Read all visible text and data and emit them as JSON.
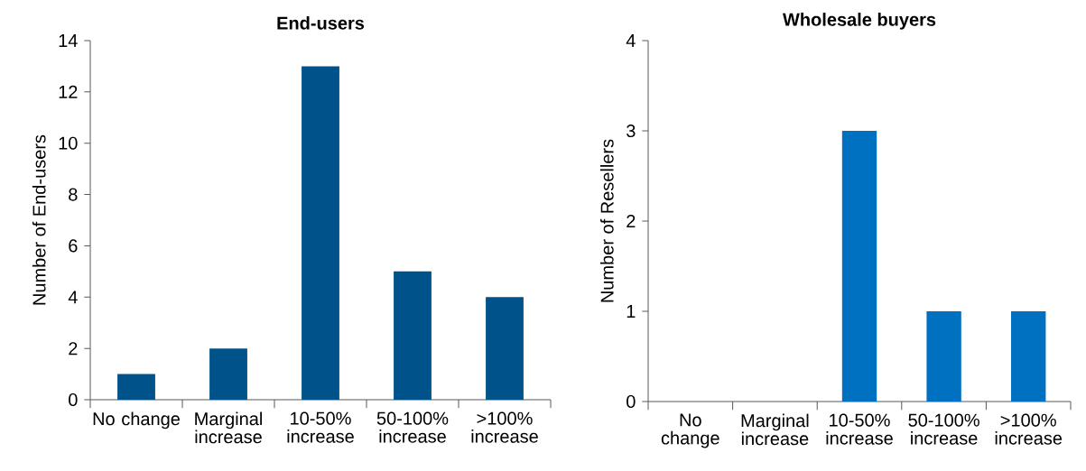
{
  "chart_data": [
    {
      "type": "bar",
      "title": "End-users",
      "ylabel": "Number of End-users",
      "categories": [
        "No change",
        "Marginal increase",
        "10-50% increase",
        "50-100% increase",
        ">100% increase"
      ],
      "values": [
        1,
        2,
        13,
        5,
        4
      ],
      "color": "#00538a",
      "ylim": [
        0,
        14
      ],
      "yticks": [
        0,
        2,
        4,
        6,
        8,
        10,
        12,
        14
      ]
    },
    {
      "type": "bar",
      "title": "Wholesale buyers",
      "ylabel": "Number of Resellers",
      "categories": [
        "No change",
        "Marginal increase",
        "10-50% increase",
        "50-100% increase",
        ">100% increase"
      ],
      "values": [
        0,
        0,
        3,
        1,
        1
      ],
      "color": "#0070c0",
      "ylim": [
        0,
        4
      ],
      "yticks": [
        0,
        1,
        2,
        3,
        4
      ]
    }
  ]
}
